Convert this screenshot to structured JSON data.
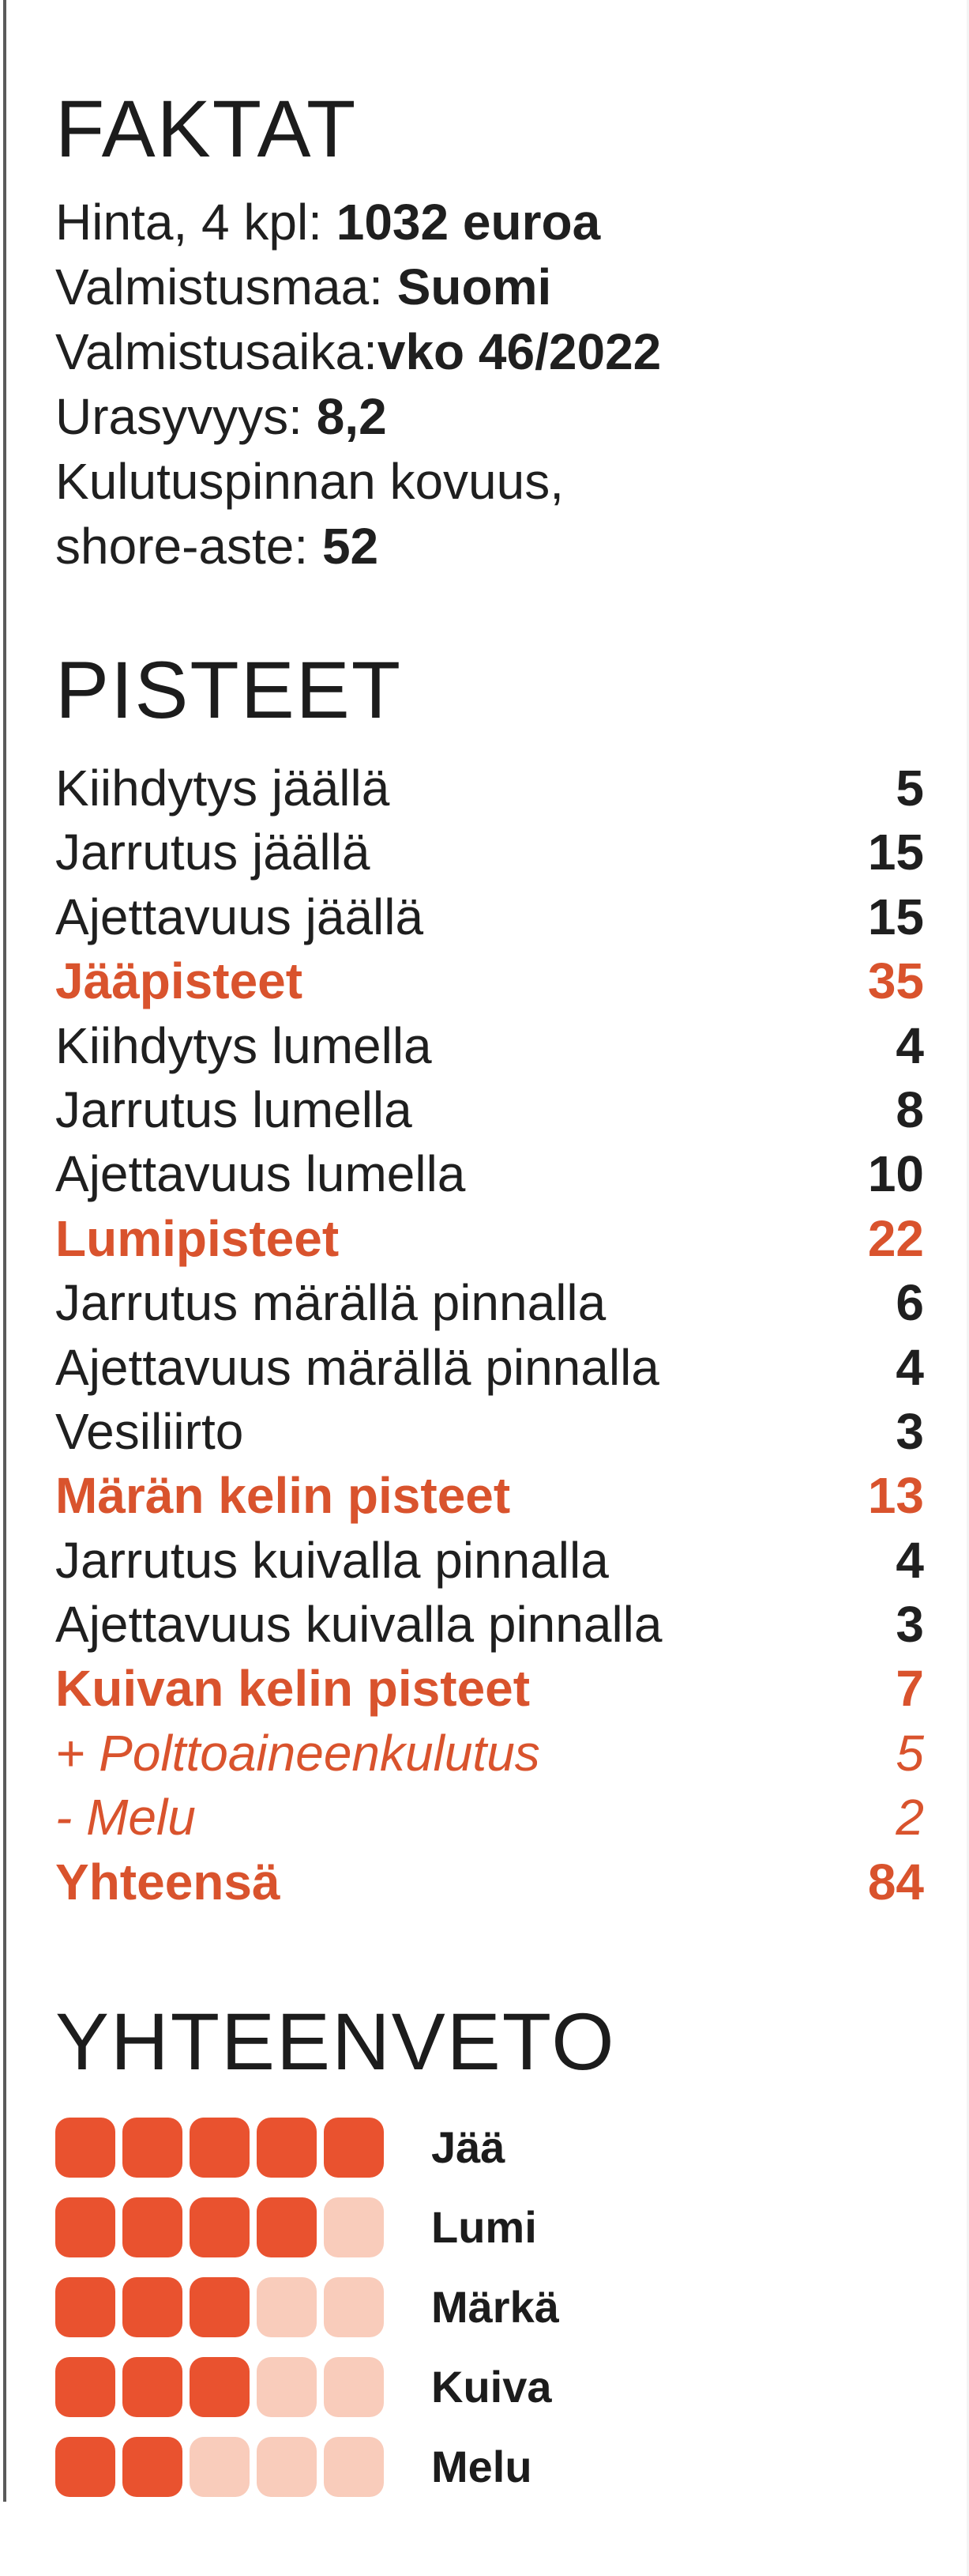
{
  "facts": {
    "heading": "FAKTAT",
    "lines": [
      {
        "label": "Hinta, 4 kpl: ",
        "value": "1032  euroa"
      },
      {
        "label": "Valmistusmaa: ",
        "value": "Suomi"
      },
      {
        "label": "Valmistusaika:",
        "value": "vko 46/2022"
      },
      {
        "label": "Urasyvyys: ",
        "value": "8,2"
      },
      {
        "label": "Kulutuspinnan kovuus,",
        "value": ""
      },
      {
        "label": "shore-aste: ",
        "value": "52"
      }
    ]
  },
  "scores": {
    "heading": "PISTEET",
    "rows": [
      {
        "label": "Kiihdytys jäällä",
        "value": "5",
        "kind": "item"
      },
      {
        "label": "Jarrutus jäällä",
        "value": "15",
        "kind": "item"
      },
      {
        "label": "Ajettavuus jäällä",
        "value": "15",
        "kind": "item"
      },
      {
        "label": "Jääpisteet",
        "value": "35",
        "kind": "subtotal"
      },
      {
        "label": "Kiihdytys lumella",
        "value": "4",
        "kind": "item"
      },
      {
        "label": "Jarrutus lumella",
        "value": "8",
        "kind": "item"
      },
      {
        "label": "Ajettavuus lumella",
        "value": "10",
        "kind": "item"
      },
      {
        "label": "Lumipisteet",
        "value": "22",
        "kind": "subtotal"
      },
      {
        "label": "Jarrutus märällä pinnalla",
        "value": "6",
        "kind": "item"
      },
      {
        "label": "Ajettavuus märällä pinnalla",
        "value": "4",
        "kind": "item"
      },
      {
        "label": "Vesiliirto",
        "value": "3",
        "kind": "item"
      },
      {
        "label": "Märän kelin pisteet",
        "value": "13",
        "kind": "subtotal"
      },
      {
        "label": "Jarrutus  kuivalla pinnalla",
        "value": "4",
        "kind": "item"
      },
      {
        "label": "Ajettavuus kuivalla pinnalla",
        "value": "3",
        "kind": "item"
      },
      {
        "label": "Kuivan kelin pisteet",
        "value": "7",
        "kind": "subtotal"
      },
      {
        "label": "+ Polttoaineenkulutus",
        "value": "5",
        "kind": "adjust"
      },
      {
        "label": "- Melu",
        "value": "2",
        "kind": "adjust"
      },
      {
        "label": "Yhteensä",
        "value": "84",
        "kind": "total"
      }
    ]
  },
  "summary": {
    "heading": "YHTEENVETO",
    "max_rating": 5,
    "colors": {
      "filled": "#e9522f",
      "empty": "#f9ccbb"
    },
    "rows": [
      {
        "label": "Jää",
        "rating": 5
      },
      {
        "label": "Lumi",
        "rating": 4
      },
      {
        "label": "Märkä",
        "rating": 3
      },
      {
        "label": "Kuiva",
        "rating": 3
      },
      {
        "label": "Melu",
        "rating": 2
      }
    ]
  }
}
